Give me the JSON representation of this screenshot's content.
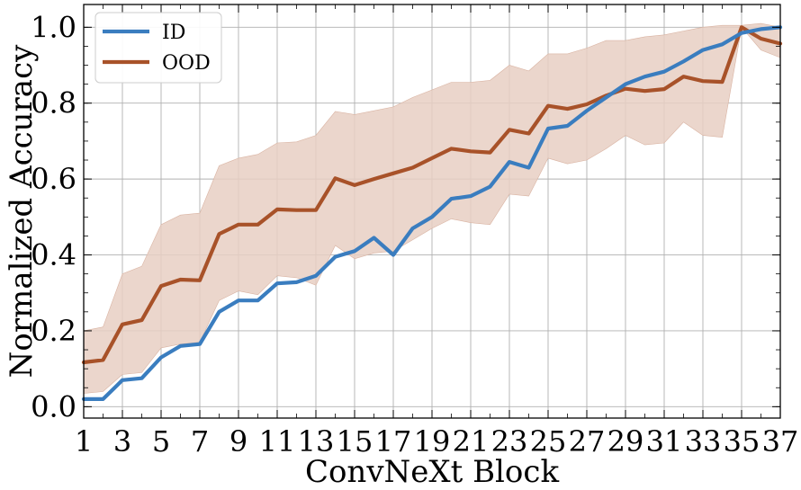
{
  "chart_data": {
    "type": "line",
    "xlabel": "ConvNeXt Block",
    "ylabel": "Normalized Accuracy",
    "xlim": [
      1,
      37
    ],
    "ylim": [
      -0.03,
      1.06
    ],
    "x": [
      1,
      2,
      3,
      4,
      5,
      6,
      7,
      8,
      9,
      10,
      11,
      12,
      13,
      14,
      15,
      16,
      17,
      18,
      19,
      20,
      21,
      22,
      23,
      24,
      25,
      26,
      27,
      28,
      29,
      30,
      31,
      32,
      33,
      34,
      35,
      36,
      37
    ],
    "xticks": [
      "1",
      "3",
      "5",
      "7",
      "9",
      "11",
      "13",
      "15",
      "17",
      "19",
      "21",
      "23",
      "25",
      "27",
      "29",
      "31",
      "33",
      "35",
      "37"
    ],
    "yticks": [
      "0.0",
      "0.2",
      "0.4",
      "0.6",
      "0.8",
      "1.0"
    ],
    "grid": true,
    "legend_position": "top-left",
    "series": [
      {
        "name": "ID",
        "color": "#3a7dbf",
        "values": [
          0.02,
          0.02,
          0.07,
          0.075,
          0.13,
          0.16,
          0.165,
          0.25,
          0.28,
          0.28,
          0.325,
          0.328,
          0.345,
          0.395,
          0.41,
          0.445,
          0.4,
          0.47,
          0.5,
          0.548,
          0.555,
          0.58,
          0.645,
          0.63,
          0.733,
          0.74,
          0.78,
          0.815,
          0.85,
          0.87,
          0.883,
          0.91,
          0.94,
          0.955,
          0.985,
          0.995,
          1.0
        ]
      },
      {
        "name": "OOD",
        "color": "#a85229",
        "band_color": "#e8cfc3",
        "values": [
          0.117,
          0.123,
          0.217,
          0.228,
          0.318,
          0.335,
          0.333,
          0.455,
          0.48,
          0.48,
          0.52,
          0.518,
          0.518,
          0.602,
          0.584,
          0.6,
          0.615,
          0.63,
          0.655,
          0.68,
          0.673,
          0.67,
          0.73,
          0.72,
          0.793,
          0.785,
          0.797,
          0.82,
          0.838,
          0.832,
          0.837,
          0.87,
          0.858,
          0.856,
          1.0,
          0.97,
          0.957
        ],
        "band_lower": [
          0.035,
          0.04,
          0.085,
          0.09,
          0.155,
          0.165,
          0.17,
          0.28,
          0.305,
          0.295,
          0.345,
          0.34,
          0.32,
          0.425,
          0.39,
          0.405,
          0.41,
          0.44,
          0.47,
          0.495,
          0.485,
          0.48,
          0.56,
          0.555,
          0.655,
          0.64,
          0.65,
          0.68,
          0.715,
          0.69,
          0.695,
          0.75,
          0.715,
          0.71,
          1.0,
          0.94,
          0.92
        ],
        "band_upper": [
          0.2,
          0.21,
          0.35,
          0.37,
          0.48,
          0.505,
          0.51,
          0.635,
          0.655,
          0.665,
          0.695,
          0.698,
          0.715,
          0.778,
          0.77,
          0.78,
          0.79,
          0.815,
          0.835,
          0.855,
          0.855,
          0.86,
          0.9,
          0.885,
          0.93,
          0.93,
          0.945,
          0.965,
          0.965,
          0.975,
          0.98,
          0.99,
          1.0,
          1.005,
          1.005,
          1.01,
          1.0
        ]
      }
    ]
  }
}
